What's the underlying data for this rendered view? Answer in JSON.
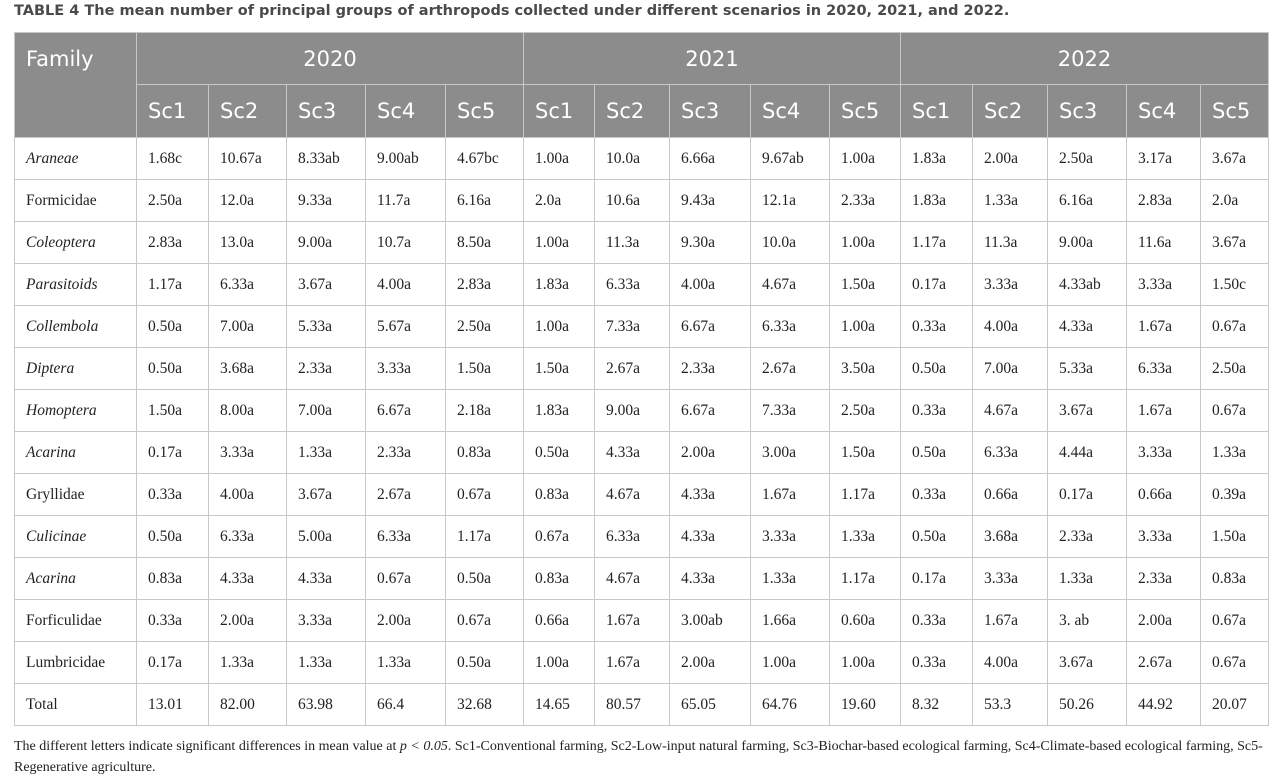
{
  "title": "TABLE 4 The mean number of principal groups of arthropods collected under different scenarios in 2020, 2021, and 2022.",
  "table": {
    "header": {
      "family": "Family",
      "years": [
        {
          "year": "2020",
          "scenarios": [
            "Sc1",
            "Sc2",
            "Sc3",
            "Sc4",
            "Sc5"
          ]
        },
        {
          "year": "2021",
          "scenarios": [
            "Sc1",
            "Sc2",
            "Sc3",
            "Sc4",
            "Sc5"
          ]
        },
        {
          "year": "2022",
          "scenarios": [
            "Sc1",
            "Sc2",
            "Sc3",
            "Sc4",
            "Sc5"
          ]
        }
      ]
    },
    "rows": [
      {
        "family": "Araneae",
        "italic": true,
        "cells": [
          "1.68c",
          "10.67a",
          "8.33ab",
          "9.00ab",
          "4.67bc",
          "1.00a",
          "10.0a",
          "6.66a",
          "9.67ab",
          "1.00a",
          "1.83a",
          "2.00a",
          "2.50a",
          "3.17a",
          "3.67a"
        ]
      },
      {
        "family": "Formicidae",
        "italic": false,
        "cells": [
          "2.50a",
          "12.0a",
          "9.33a",
          "11.7a",
          "6.16a",
          "2.0a",
          "10.6a",
          "9.43a",
          "12.1a",
          "2.33a",
          "1.83a",
          "1.33a",
          "6.16a",
          "2.83a",
          "2.0a"
        ]
      },
      {
        "family": "Coleoptera",
        "italic": true,
        "cells": [
          "2.83a",
          "13.0a",
          "9.00a",
          "10.7a",
          "8.50a",
          "1.00a",
          "11.3a",
          "9.30a",
          "10.0a",
          "1.00a",
          "1.17a",
          "11.3a",
          "9.00a",
          "11.6a",
          "3.67a"
        ]
      },
      {
        "family": "Parasitoids",
        "italic": true,
        "cells": [
          "1.17a",
          "6.33a",
          "3.67a",
          "4.00a",
          "2.83a",
          "1.83a",
          "6.33a",
          "4.00a",
          "4.67a",
          "1.50a",
          "0.17a",
          "3.33a",
          "4.33ab",
          "3.33a",
          "1.50c"
        ]
      },
      {
        "family": "Collembola",
        "italic": true,
        "cells": [
          "0.50a",
          "7.00a",
          "5.33a",
          "5.67a",
          "2.50a",
          "1.00a",
          "7.33a",
          "6.67a",
          "6.33a",
          "1.00a",
          "0.33a",
          "4.00a",
          "4.33a",
          "1.67a",
          "0.67a"
        ]
      },
      {
        "family": "Diptera",
        "italic": true,
        "cells": [
          "0.50a",
          "3.68a",
          "2.33a",
          "3.33a",
          "1.50a",
          "1.50a",
          "2.67a",
          "2.33a",
          "2.67a",
          "3.50a",
          "0.50a",
          "7.00a",
          "5.33a",
          "6.33a",
          "2.50a"
        ]
      },
      {
        "family": "Homoptera",
        "italic": true,
        "cells": [
          "1.50a",
          "8.00a",
          "7.00a",
          "6.67a",
          "2.18a",
          "1.83a",
          "9.00a",
          "6.67a",
          "7.33a",
          "2.50a",
          "0.33a",
          "4.67a",
          "3.67a",
          "1.67a",
          "0.67a"
        ]
      },
      {
        "family": "Acarina",
        "italic": true,
        "cells": [
          "0.17a",
          "3.33a",
          "1.33a",
          "2.33a",
          "0.83a",
          "0.50a",
          "4.33a",
          "2.00a",
          "3.00a",
          "1.50a",
          "0.50a",
          "6.33a",
          "4.44a",
          "3.33a",
          "1.33a"
        ]
      },
      {
        "family": "Gryllidae",
        "italic": false,
        "cells": [
          "0.33a",
          "4.00a",
          "3.67a",
          "2.67a",
          "0.67a",
          "0.83a",
          "4.67a",
          "4.33a",
          "1.67a",
          "1.17a",
          "0.33a",
          "0.66a",
          "0.17a",
          "0.66a",
          "0.39a"
        ]
      },
      {
        "family": "Culicinae",
        "italic": true,
        "cells": [
          "0.50a",
          "6.33a",
          "5.00a",
          "6.33a",
          "1.17a",
          "0.67a",
          "6.33a",
          "4.33a",
          "3.33a",
          "1.33a",
          "0.50a",
          "3.68a",
          "2.33a",
          "3.33a",
          "1.50a"
        ]
      },
      {
        "family": "Acarina",
        "italic": true,
        "cells": [
          "0.83a",
          "4.33a",
          "4.33a",
          "0.67a",
          "0.50a",
          "0.83a",
          "4.67a",
          "4.33a",
          "1.33a",
          "1.17a",
          "0.17a",
          "3.33a",
          "1.33a",
          "2.33a",
          "0.83a"
        ]
      },
      {
        "family": "Forficulidae",
        "italic": false,
        "cells": [
          "0.33a",
          "2.00a",
          "3.33a",
          "2.00a",
          "0.67a",
          "0.66a",
          "1.67a",
          "3.00ab",
          "1.66a",
          "0.60a",
          "0.33a",
          "1.67a",
          "3. ab",
          "2.00a",
          "0.67a"
        ]
      },
      {
        "family": "Lumbricidae",
        "italic": false,
        "cells": [
          "0.17a",
          "1.33a",
          "1.33a",
          "1.33a",
          "0.50a",
          "1.00a",
          "1.67a",
          "2.00a",
          "1.00a",
          "1.00a",
          "0.33a",
          "4.00a",
          "3.67a",
          "2.67a",
          "0.67a"
        ]
      },
      {
        "family": "Total",
        "italic": false,
        "cells": [
          "13.01",
          "82.00",
          "63.98",
          "66.4",
          "32.68",
          "14.65",
          "80.57",
          "65.05",
          "64.76",
          "19.60",
          "8.32",
          "53.3",
          "50.26",
          "44.92",
          "20.07"
        ]
      }
    ]
  },
  "footnote": [
    "The different letters indicate significant differences in mean value at ",
    "p < 0.05",
    ". Sc1-Conventional farming, Sc2-Low-input natural farming, Sc3-Biochar-based ecological farming, Sc4-Climate-based ecological farming, Sc5- Regenerative agriculture."
  ]
}
